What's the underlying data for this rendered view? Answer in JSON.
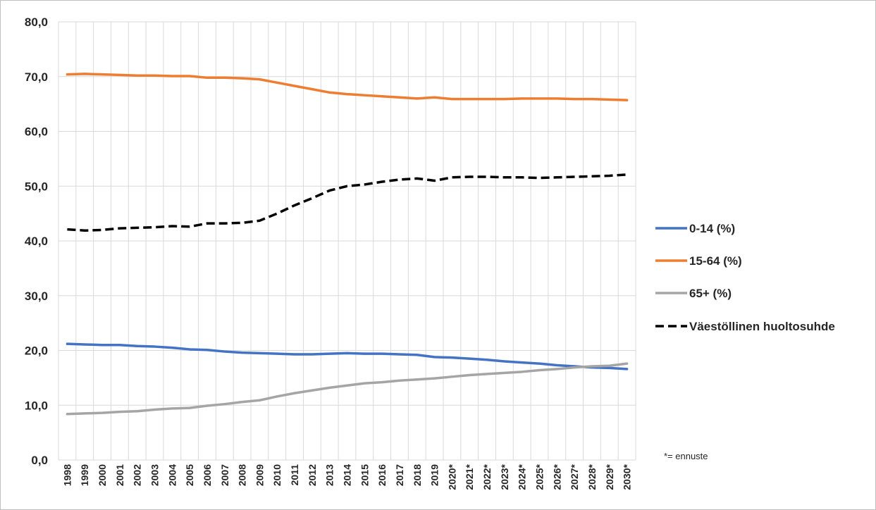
{
  "chart_data": {
    "type": "line",
    "title": "",
    "xlabel": "",
    "ylabel": "",
    "ylim": [
      0,
      80
    ],
    "y_ticks": [
      "0,0",
      "10,0",
      "20,0",
      "30,0",
      "40,0",
      "50,0",
      "60,0",
      "70,0",
      "80,0"
    ],
    "grid": true,
    "legend_position": "right",
    "categories": [
      "1998",
      "1999",
      "2000",
      "2001",
      "2002",
      "2003",
      "2004",
      "2005",
      "2006",
      "2007",
      "2008",
      "2009",
      "2010",
      "2011",
      "2012",
      "2013",
      "2014",
      "2015",
      "2016",
      "2017",
      "2018",
      "2019",
      "2020*",
      "2021*",
      "2022*",
      "2023*",
      "2024*",
      "2025*",
      "2026*",
      "2027*",
      "2028*",
      "2029*",
      "2030*"
    ],
    "series": [
      {
        "name": "0-14 (%)",
        "color": "#4472c4",
        "dash": "solid",
        "values": [
          21.2,
          21.1,
          21.0,
          21.0,
          20.8,
          20.7,
          20.5,
          20.2,
          20.1,
          19.8,
          19.6,
          19.5,
          19.4,
          19.3,
          19.3,
          19.4,
          19.5,
          19.4,
          19.4,
          19.3,
          19.2,
          18.8,
          18.7,
          18.5,
          18.3,
          18.0,
          17.8,
          17.6,
          17.3,
          17.1,
          16.9,
          16.8,
          16.6
        ]
      },
      {
        "name": "15-64 (%)",
        "color": "#ed7d31",
        "dash": "solid",
        "values": [
          70.4,
          70.5,
          70.4,
          70.3,
          70.2,
          70.2,
          70.1,
          70.1,
          69.8,
          69.8,
          69.7,
          69.5,
          68.9,
          68.3,
          67.7,
          67.1,
          66.8,
          66.6,
          66.4,
          66.2,
          66.0,
          66.2,
          65.9,
          65.9,
          65.9,
          65.9,
          66.0,
          66.0,
          66.0,
          65.9,
          65.9,
          65.8,
          65.7
        ]
      },
      {
        "name": "65+ (%)",
        "color": "#a5a5a5",
        "dash": "solid",
        "values": [
          8.4,
          8.5,
          8.6,
          8.8,
          8.9,
          9.2,
          9.4,
          9.5,
          9.9,
          10.2,
          10.6,
          10.9,
          11.6,
          12.2,
          12.7,
          13.2,
          13.6,
          14.0,
          14.2,
          14.5,
          14.7,
          14.9,
          15.2,
          15.5,
          15.7,
          15.9,
          16.1,
          16.4,
          16.6,
          16.9,
          17.1,
          17.2,
          17.6
        ]
      },
      {
        "name": "Väestöllinen huoltosuhde",
        "color": "#000000",
        "dash": "dashed",
        "values": [
          42.1,
          41.9,
          42.0,
          42.3,
          42.4,
          42.5,
          42.7,
          42.6,
          43.2,
          43.2,
          43.3,
          43.7,
          45.0,
          46.5,
          47.8,
          49.2,
          50.0,
          50.3,
          50.8,
          51.2,
          51.4,
          51.0,
          51.6,
          51.7,
          51.7,
          51.6,
          51.6,
          51.5,
          51.6,
          51.7,
          51.8,
          51.9,
          52.1
        ]
      }
    ],
    "annotations": [
      "*= ennuste"
    ]
  }
}
